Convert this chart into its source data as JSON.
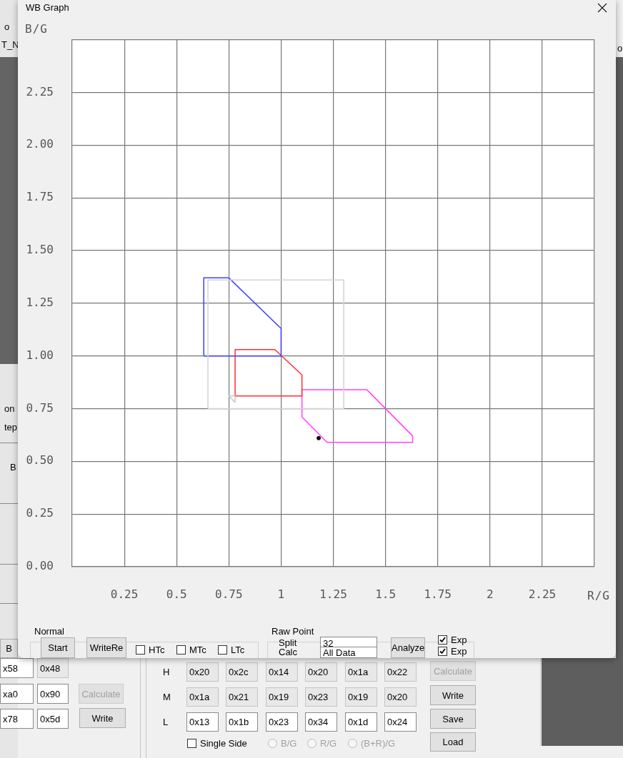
{
  "chart_data": {
    "type": "line",
    "title": "WB Graph",
    "xlabel": "R/G",
    "ylabel": "B/G",
    "xlim": [
      0,
      2.5
    ],
    "ylim": [
      0,
      2.5
    ],
    "xticks": [
      0.25,
      0.5,
      0.75,
      1,
      1.25,
      1.5,
      1.75,
      2,
      2.25,
      {
        "value": 2.5,
        "label": null
      }
    ],
    "yticks": [
      {
        "value": 0,
        "label": "0.00"
      },
      0.25,
      {
        "value": 0.5,
        "label": "0.50"
      },
      0.75,
      {
        "value": 1,
        "label": "1.00"
      },
      1.25,
      {
        "value": 1.5,
        "label": "1.50"
      },
      1.75,
      {
        "value": 2,
        "label": "2.00"
      },
      2.25,
      {
        "value": 2.5,
        "label": null
      }
    ],
    "grid": true,
    "legend": false,
    "marker": "none",
    "series": [
      {
        "type": "line",
        "color": "#d3d3d3",
        "x": [
          0.65,
          0.65,
          1.3,
          1.3
        ],
        "values": [
          0.75,
          1.36,
          1.36,
          0.75
        ]
      },
      {
        "type": "line",
        "color": "#d3d3d3",
        "x": [
          0.65,
          1.3
        ],
        "values": [
          0.75,
          0.75
        ]
      },
      {
        "type": "line",
        "color": "#c8c8c8",
        "x": [
          0.75,
          0.78,
          0.78
        ],
        "values": [
          0.81,
          0.81,
          0.78
        ]
      },
      {
        "type": "line",
        "color": "#c8c8c8",
        "x": [
          0.75,
          0.78
        ],
        "values": [
          0.81,
          0.78
        ]
      },
      {
        "type": "line",
        "color": "#4040ff",
        "x": [
          0.63,
          0.63,
          0.75,
          1.0,
          1.0
        ],
        "values": [
          1.0,
          1.37,
          1.37,
          1.13,
          1.0
        ]
      },
      {
        "type": "line",
        "color": "#4040ff",
        "x": [
          0.63,
          1.0
        ],
        "values": [
          1.0,
          1.0
        ]
      },
      {
        "type": "line",
        "color": "#ff3030",
        "x": [
          0.78,
          0.78,
          0.97,
          1.1,
          1.1
        ],
        "values": [
          0.81,
          1.03,
          1.03,
          0.91,
          0.81
        ]
      },
      {
        "type": "line",
        "color": "#ff3030",
        "x": [
          0.78,
          1.1
        ],
        "values": [
          0.81,
          0.81
        ]
      },
      {
        "type": "line",
        "color": "#ff40ff",
        "x": [
          1.1,
          1.1,
          1.41,
          1.63,
          1.63
        ],
        "values": [
          0.71,
          0.84,
          0.84,
          0.62,
          0.59
        ]
      },
      {
        "type": "line",
        "color": "#ff40ff",
        "x": [
          1.1,
          1.22,
          1.63
        ],
        "values": [
          0.71,
          0.59,
          0.59
        ]
      },
      {
        "type": "scatter",
        "marker": "circle",
        "color": "#000000",
        "x": [
          1.18
        ],
        "values": [
          0.61
        ]
      }
    ],
    "annotations": [
      "Normal",
      "Start",
      "WriteRe",
      "HTc",
      "MTc",
      "LTc",
      "Raw Point",
      "Split",
      "32",
      "Calc",
      "All Data",
      "Analyze",
      "Exp",
      "Exp",
      "B",
      "x58",
      "0x48",
      "xa0",
      "0x90",
      "Calculate",
      "x78",
      "0x5d",
      "Write",
      "H",
      "M",
      "L",
      "0x20",
      "0x2c",
      "0x14",
      "0x20",
      "0x1a",
      "0x22",
      "0x1a",
      "0x21",
      "0x19",
      "0x23",
      "0x19",
      "0x20",
      "0x13",
      "0x1b",
      "0x23",
      "0x34",
      "0x1d",
      "0x24",
      "Calculate",
      "Write",
      "Save",
      "Load",
      "Single Side",
      "B/G",
      "R/G",
      "(B+R)/G",
      "on",
      "tep",
      "B",
      "o",
      "T_N",
      "o"
    ]
  }
}
